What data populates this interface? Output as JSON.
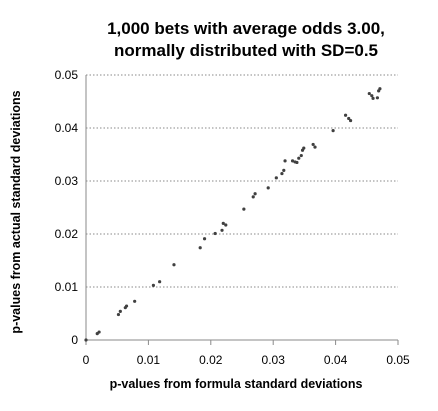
{
  "chart_data": {
    "type": "scatter",
    "title": [
      "1,000 bets with average odds 3.00,",
      "normally distributed with SD=0.5"
    ],
    "xlabel": "p-values from formula standard deviations",
    "ylabel": "p-values from actual standard deviations",
    "xlim": [
      0,
      0.05
    ],
    "ylim": [
      0,
      0.05
    ],
    "x_ticks": [
      "0",
      "0.01",
      "0.02",
      "0.03",
      "0.04",
      "0.05"
    ],
    "y_ticks": [
      "0",
      "0.01",
      "0.02",
      "0.03",
      "0.04",
      "0.05"
    ],
    "grid": "horizontal dotted",
    "marker_color": "#404040",
    "series": [
      {
        "points": [
          [
            0.0,
            0.0
          ],
          [
            0.0018,
            0.0012
          ],
          [
            0.0021,
            0.0015
          ],
          [
            0.0052,
            0.0048
          ],
          [
            0.0055,
            0.0054
          ],
          [
            0.0063,
            0.0061
          ],
          [
            0.0065,
            0.0064
          ],
          [
            0.0078,
            0.0073
          ],
          [
            0.0108,
            0.0103
          ],
          [
            0.0118,
            0.011
          ],
          [
            0.0141,
            0.0142
          ],
          [
            0.0183,
            0.0174
          ],
          [
            0.019,
            0.0191
          ],
          [
            0.0207,
            0.0201
          ],
          [
            0.0218,
            0.0207
          ],
          [
            0.022,
            0.022
          ],
          [
            0.0224,
            0.0217
          ],
          [
            0.0253,
            0.0247
          ],
          [
            0.0268,
            0.027
          ],
          [
            0.0271,
            0.0276
          ],
          [
            0.0292,
            0.0287
          ],
          [
            0.0305,
            0.0306
          ],
          [
            0.0314,
            0.0314
          ],
          [
            0.0317,
            0.032
          ],
          [
            0.0319,
            0.0338
          ],
          [
            0.0331,
            0.0338
          ],
          [
            0.0335,
            0.0336
          ],
          [
            0.0338,
            0.0335
          ],
          [
            0.0341,
            0.0343
          ],
          [
            0.0345,
            0.0348
          ],
          [
            0.0347,
            0.0358
          ],
          [
            0.0349,
            0.0362
          ],
          [
            0.0364,
            0.0369
          ],
          [
            0.0367,
            0.0364
          ],
          [
            0.0396,
            0.0395
          ],
          [
            0.0416,
            0.0424
          ],
          [
            0.0421,
            0.0418
          ],
          [
            0.0424,
            0.0414
          ],
          [
            0.0454,
            0.0465
          ],
          [
            0.0458,
            0.0461
          ],
          [
            0.046,
            0.0456
          ],
          [
            0.0467,
            0.0457
          ],
          [
            0.0469,
            0.047
          ],
          [
            0.0471,
            0.0474
          ]
        ]
      }
    ]
  }
}
